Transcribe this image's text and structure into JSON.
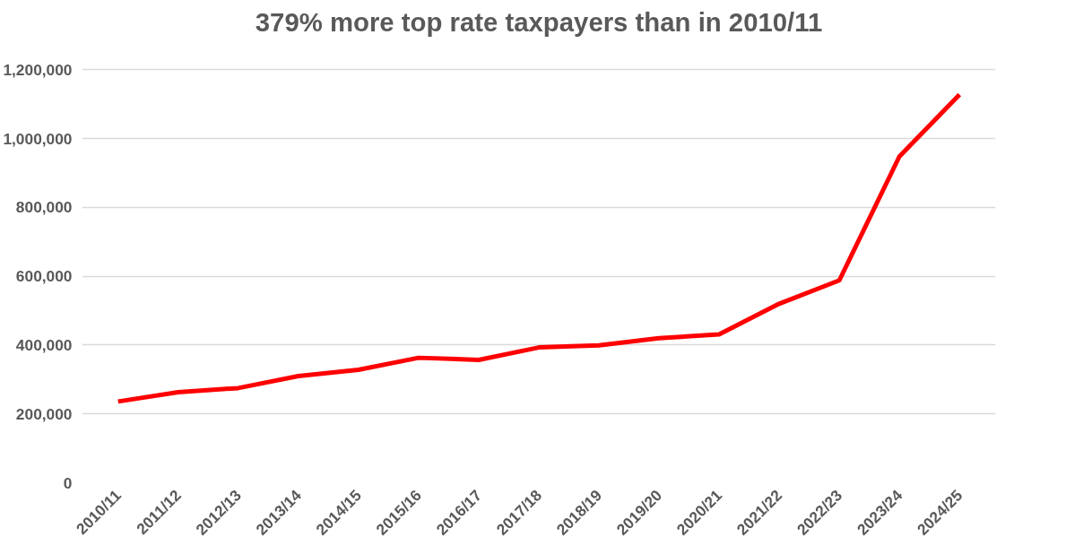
{
  "chart_data": {
    "type": "line",
    "title": "379% more top rate taxpayers than in 2010/11",
    "categories": [
      "2010/11",
      "2011/12",
      "2012/13",
      "2013/14",
      "2014/15",
      "2015/16",
      "2016/17",
      "2017/18",
      "2018/19",
      "2019/20",
      "2020/21",
      "2021/22",
      "2022/23",
      "2023/24",
      "2024/25"
    ],
    "series": [
      {
        "color": "#ff0000",
        "values": [
          236000,
          263000,
          275000,
          310000,
          328000,
          363000,
          357000,
          393000,
          399000,
          420000,
          431000,
          520000,
          588000,
          948000,
          1128000
        ]
      }
    ],
    "ylim": [
      0,
      1200000
    ],
    "yticks": [
      {
        "value": 0,
        "label": "0"
      },
      {
        "value": 200000,
        "label": "200,000"
      },
      {
        "value": 400000,
        "label": "400,000"
      },
      {
        "value": 600000,
        "label": "600,000"
      },
      {
        "value": 800000,
        "label": "800,000"
      },
      {
        "value": 1000000,
        "label": "1,000,000"
      },
      {
        "value": 1200000,
        "label": "1,200,000"
      }
    ],
    "grid": "y",
    "marker": "none",
    "line_style": "solid"
  }
}
